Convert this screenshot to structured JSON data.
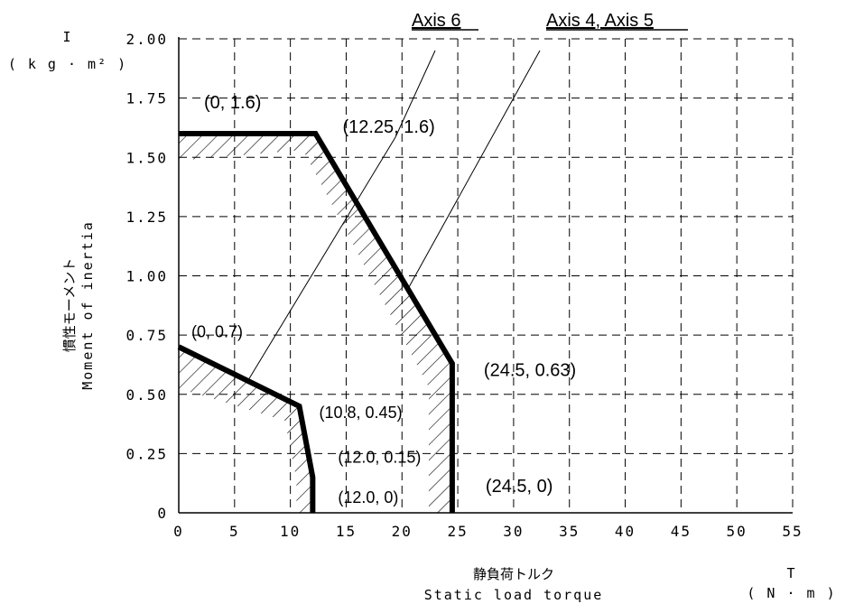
{
  "chart_data": {
    "type": "line",
    "x_axis": {
      "symbol": "T",
      "unit": "( N · m )",
      "label_jp": "静負荷トルク",
      "label_en": "Static load torque",
      "ticks": [
        "0",
        "5",
        "10",
        "15",
        "20",
        "25",
        "30",
        "35",
        "40",
        "45",
        "50",
        "55"
      ],
      "range": [
        0,
        55
      ]
    },
    "y_axis": {
      "symbol": "I",
      "unit": "( k g · m² )",
      "label_jp": "慣性モーメント",
      "label_en": "Moment of inertia",
      "ticks": [
        "0",
        "0.25",
        "0.50",
        "0.75",
        "1.00",
        "1.25",
        "1.50",
        "1.75",
        "2.00"
      ],
      "range": [
        0,
        2.0
      ]
    },
    "grid": "dashed",
    "series": [
      {
        "name": "Axis 6",
        "points": [
          [
            0,
            0.7
          ],
          [
            10.8,
            0.45
          ],
          [
            12.0,
            0.15
          ],
          [
            12.0,
            0
          ]
        ]
      },
      {
        "name": "Axis 4, Axis 5",
        "points": [
          [
            0,
            1.6
          ],
          [
            12.25,
            1.6
          ],
          [
            24.5,
            0.63
          ],
          [
            24.5,
            0
          ]
        ]
      }
    ],
    "annotations": [
      {
        "text": "(0, 1.6)",
        "x": 0,
        "y": 1.6
      },
      {
        "text": "(12.25, 1.6)",
        "x": 12.25,
        "y": 1.6
      },
      {
        "text": "(24.5, 0.63)",
        "x": 24.5,
        "y": 0.63
      },
      {
        "text": "(24.5, 0)",
        "x": 24.5,
        "y": 0
      },
      {
        "text": "(0, 0.7)",
        "x": 0,
        "y": 0.7
      },
      {
        "text": "(10.8, 0.45)",
        "x": 10.8,
        "y": 0.45
      },
      {
        "text": "(12.0, 0.15)",
        "x": 12.0,
        "y": 0.15
      },
      {
        "text": "(12.0, 0)",
        "x": 12.0,
        "y": 0
      }
    ]
  }
}
